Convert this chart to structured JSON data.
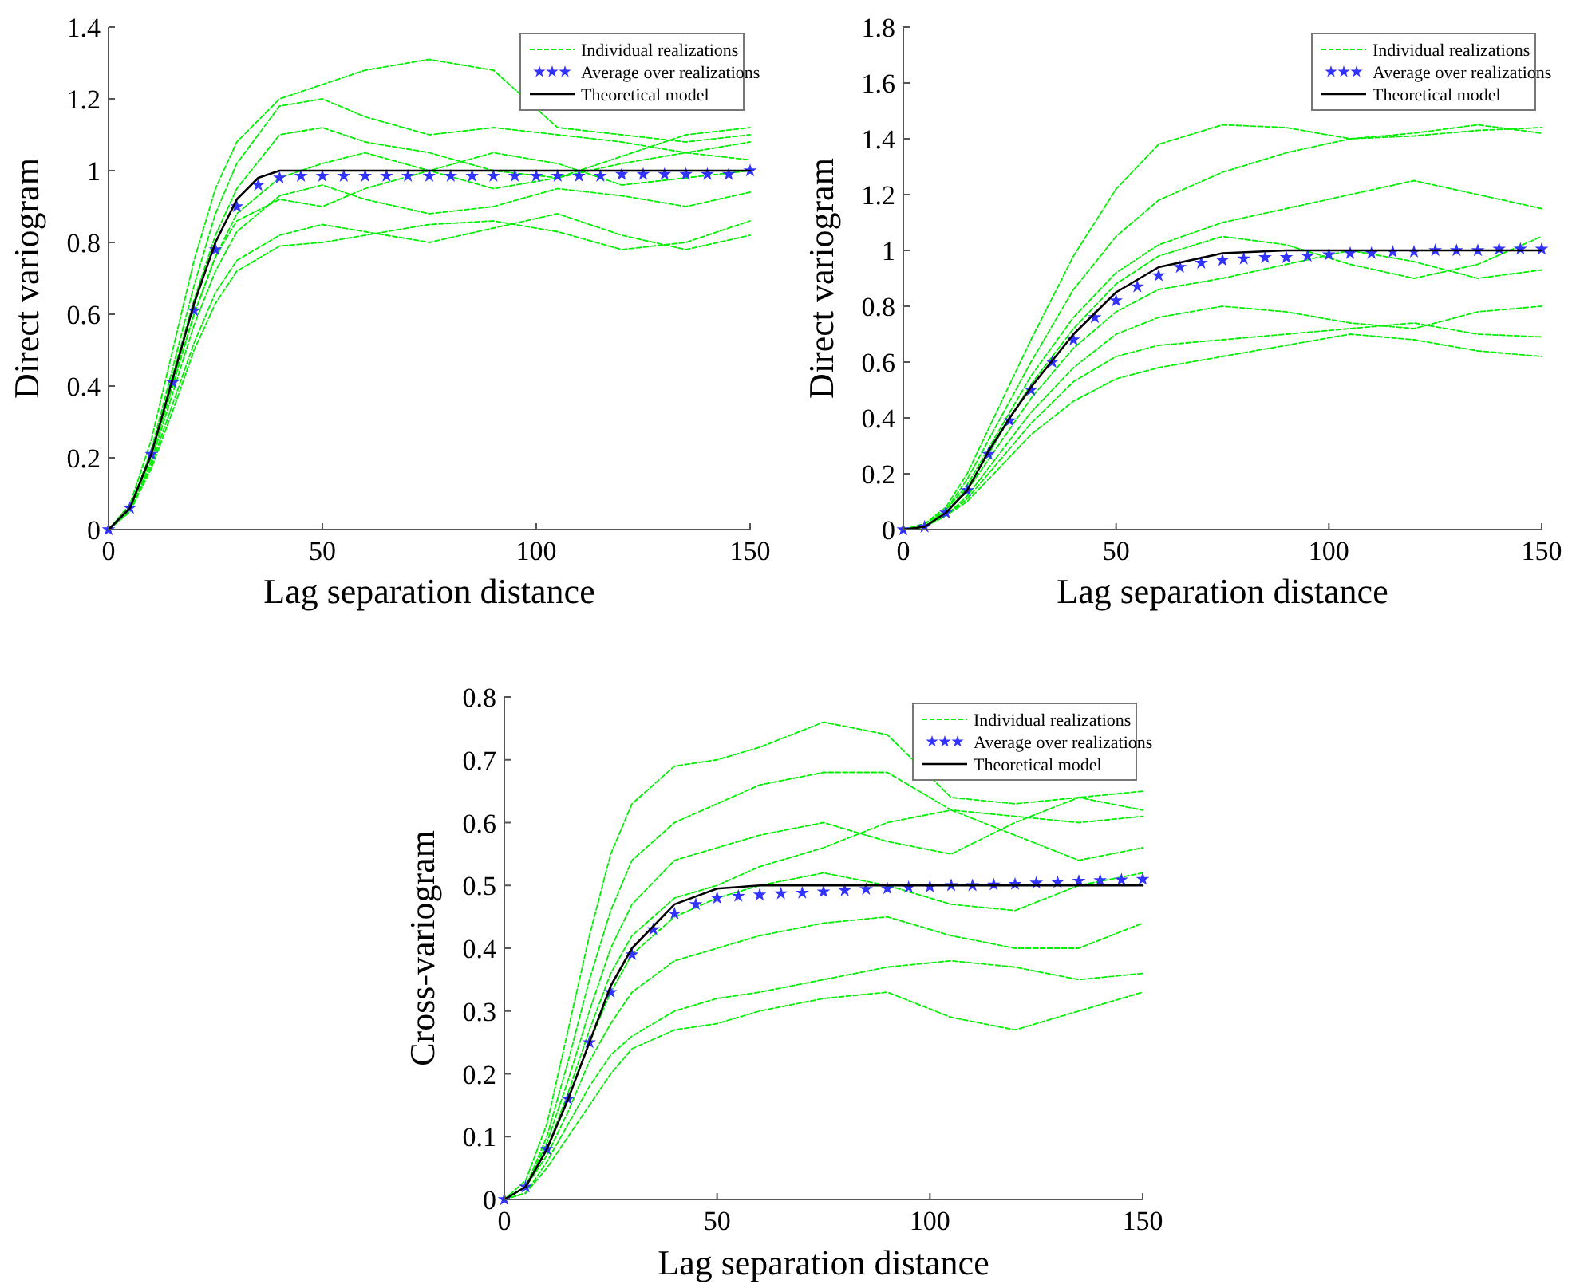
{
  "chart_data": [
    {
      "type": "line",
      "xlabel": "Lag separation distance",
      "ylabel": "Direct variogram",
      "xlim": [
        0,
        150
      ],
      "xticks": [
        0,
        50,
        100,
        150
      ],
      "ylim": [
        0,
        1.4
      ],
      "yticks": [
        0,
        0.2,
        0.4,
        0.6,
        0.8,
        1,
        1.2,
        1.4
      ],
      "grid": false,
      "legend": "top right",
      "series": [
        {
          "type": "line",
          "name": "Individual realizations",
          "color": "#00ee00",
          "line_style": "dashed",
          "marker": "none",
          "x": [
            0,
            5,
            10,
            15,
            20,
            25,
            30,
            40,
            50,
            60,
            75,
            90,
            105,
            120,
            135,
            150
          ],
          "values": [
            0,
            0.07,
            0.25,
            0.5,
            0.75,
            0.95,
            1.08,
            1.2,
            1.24,
            1.28,
            1.31,
            1.28,
            1.12,
            1.1,
            1.08,
            1.1
          ]
        },
        {
          "type": "line",
          "color": "#00ee00",
          "line_style": "dashed",
          "marker": "none",
          "x": [
            0,
            5,
            10,
            15,
            20,
            25,
            30,
            40,
            50,
            60,
            75,
            90,
            105,
            120,
            135,
            150
          ],
          "values": [
            0,
            0.06,
            0.22,
            0.45,
            0.68,
            0.88,
            1.02,
            1.18,
            1.2,
            1.15,
            1.1,
            1.12,
            1.1,
            1.08,
            1.05,
            1.08
          ]
        },
        {
          "type": "line",
          "color": "#00ee00",
          "line_style": "dashed",
          "marker": "none",
          "x": [
            0,
            5,
            10,
            15,
            20,
            25,
            30,
            40,
            50,
            60,
            75,
            90,
            105,
            120,
            135,
            150
          ],
          "values": [
            0,
            0.06,
            0.2,
            0.4,
            0.6,
            0.76,
            0.88,
            0.98,
            1.02,
            1.05,
            1.0,
            0.95,
            0.98,
            1.02,
            1.05,
            1.03
          ]
        },
        {
          "type": "line",
          "color": "#00ee00",
          "line_style": "dashed",
          "marker": "none",
          "x": [
            0,
            5,
            10,
            15,
            20,
            25,
            30,
            40,
            50,
            60,
            75,
            90,
            105,
            120,
            135,
            150
          ],
          "values": [
            0,
            0.05,
            0.19,
            0.38,
            0.57,
            0.72,
            0.83,
            0.93,
            0.96,
            0.92,
            0.88,
            0.9,
            0.95,
            0.93,
            0.9,
            0.94
          ]
        },
        {
          "type": "line",
          "color": "#00ee00",
          "line_style": "dashed",
          "marker": "none",
          "x": [
            0,
            5,
            10,
            15,
            20,
            25,
            30,
            40,
            50,
            60,
            75,
            90,
            105,
            120,
            135,
            150
          ],
          "values": [
            0,
            0.05,
            0.18,
            0.35,
            0.52,
            0.66,
            0.75,
            0.82,
            0.85,
            0.83,
            0.8,
            0.84,
            0.88,
            0.82,
            0.78,
            0.82
          ]
        },
        {
          "type": "line",
          "color": "#00ee00",
          "line_style": "dashed",
          "marker": "none",
          "x": [
            0,
            5,
            10,
            15,
            20,
            25,
            30,
            40,
            50,
            60,
            75,
            90,
            105,
            120,
            135,
            150
          ],
          "values": [
            0,
            0.05,
            0.17,
            0.33,
            0.5,
            0.63,
            0.72,
            0.79,
            0.8,
            0.82,
            0.85,
            0.86,
            0.83,
            0.78,
            0.8,
            0.86
          ]
        },
        {
          "type": "line",
          "color": "#00ee00",
          "line_style": "dashed",
          "marker": "none",
          "x": [
            0,
            5,
            10,
            15,
            20,
            25,
            30,
            40,
            50,
            60,
            75,
            90,
            105,
            120,
            135,
            150
          ],
          "values": [
            0,
            0.06,
            0.21,
            0.43,
            0.64,
            0.82,
            0.95,
            1.1,
            1.12,
            1.08,
            1.05,
            1.0,
            0.98,
            1.04,
            1.1,
            1.12
          ]
        },
        {
          "type": "line",
          "color": "#00ee00",
          "line_style": "dashed",
          "marker": "none",
          "x": [
            0,
            5,
            10,
            15,
            20,
            25,
            30,
            40,
            50,
            60,
            75,
            90,
            105,
            120,
            135,
            150
          ],
          "values": [
            0,
            0.06,
            0.21,
            0.41,
            0.6,
            0.76,
            0.86,
            0.92,
            0.9,
            0.95,
            1.0,
            1.05,
            1.02,
            0.96,
            0.98,
            1.0
          ]
        },
        {
          "type": "scatter",
          "name": "Average over realizations",
          "color": "#3333ff",
          "marker": "star",
          "x": [
            0,
            5,
            10,
            15,
            20,
            25,
            30,
            35,
            40,
            45,
            50,
            55,
            60,
            65,
            70,
            75,
            80,
            85,
            90,
            95,
            100,
            105,
            110,
            115,
            120,
            125,
            130,
            135,
            140,
            145,
            150
          ],
          "values": [
            0,
            0.06,
            0.21,
            0.41,
            0.61,
            0.78,
            0.9,
            0.96,
            0.98,
            0.985,
            0.985,
            0.985,
            0.985,
            0.985,
            0.985,
            0.985,
            0.985,
            0.985,
            0.985,
            0.985,
            0.985,
            0.985,
            0.985,
            0.985,
            0.99,
            0.99,
            0.99,
            0.99,
            0.99,
            0.99,
            1.0
          ]
        },
        {
          "type": "line",
          "name": "Theoretical model",
          "color": "#000000",
          "line_style": "solid",
          "marker": "none",
          "x": [
            0,
            5,
            10,
            15,
            20,
            25,
            30,
            35,
            40,
            50,
            60,
            75,
            90,
            105,
            120,
            135,
            150
          ],
          "values": [
            0,
            0.06,
            0.21,
            0.42,
            0.63,
            0.8,
            0.92,
            0.98,
            1.0,
            1.0,
            1.0,
            1.0,
            1.0,
            1.0,
            1.0,
            1.0,
            1.0
          ]
        }
      ]
    },
    {
      "type": "line",
      "xlabel": "Lag separation distance",
      "ylabel": "Direct variogram",
      "xlim": [
        0,
        150
      ],
      "xticks": [
        0,
        50,
        100,
        150
      ],
      "ylim": [
        0,
        1.8
      ],
      "yticks": [
        0,
        0.2,
        0.4,
        0.6,
        0.8,
        1,
        1.2,
        1.4,
        1.6,
        1.8
      ],
      "grid": false,
      "legend": "top right",
      "series": [
        {
          "type": "line",
          "name": "Individual realizations",
          "color": "#00ee00",
          "line_style": "dashed",
          "marker": "none",
          "x": [
            0,
            5,
            10,
            15,
            20,
            25,
            30,
            40,
            50,
            60,
            75,
            90,
            105,
            120,
            135,
            150
          ],
          "values": [
            0,
            0.02,
            0.08,
            0.2,
            0.36,
            0.52,
            0.68,
            0.98,
            1.22,
            1.38,
            1.45,
            1.44,
            1.4,
            1.42,
            1.45,
            1.42
          ]
        },
        {
          "type": "line",
          "color": "#00ee00",
          "line_style": "dashed",
          "marker": "none",
          "x": [
            0,
            5,
            10,
            15,
            20,
            25,
            30,
            40,
            50,
            60,
            75,
            90,
            105,
            120,
            135,
            150
          ],
          "values": [
            0,
            0.02,
            0.07,
            0.18,
            0.32,
            0.46,
            0.6,
            0.86,
            1.05,
            1.18,
            1.28,
            1.35,
            1.4,
            1.41,
            1.43,
            1.44
          ]
        },
        {
          "type": "line",
          "color": "#00ee00",
          "line_style": "dashed",
          "marker": "none",
          "x": [
            0,
            5,
            10,
            15,
            20,
            25,
            30,
            40,
            50,
            60,
            75,
            90,
            105,
            120,
            135,
            150
          ],
          "values": [
            0,
            0.01,
            0.07,
            0.16,
            0.29,
            0.42,
            0.55,
            0.76,
            0.92,
            1.02,
            1.1,
            1.15,
            1.2,
            1.25,
            1.2,
            1.15
          ]
        },
        {
          "type": "line",
          "color": "#00ee00",
          "line_style": "dashed",
          "marker": "none",
          "x": [
            0,
            5,
            10,
            15,
            20,
            25,
            30,
            40,
            50,
            60,
            75,
            90,
            105,
            120,
            135,
            150
          ],
          "values": [
            0,
            0.01,
            0.06,
            0.14,
            0.25,
            0.36,
            0.47,
            0.65,
            0.78,
            0.86,
            0.9,
            0.95,
            1.0,
            0.96,
            0.9,
            0.93
          ]
        },
        {
          "type": "line",
          "color": "#00ee00",
          "line_style": "dashed",
          "marker": "none",
          "x": [
            0,
            5,
            10,
            15,
            20,
            25,
            30,
            40,
            50,
            60,
            75,
            90,
            105,
            120,
            135,
            150
          ],
          "values": [
            0,
            0.01,
            0.05,
            0.12,
            0.22,
            0.32,
            0.42,
            0.58,
            0.7,
            0.76,
            0.8,
            0.78,
            0.74,
            0.72,
            0.78,
            0.8
          ]
        },
        {
          "type": "line",
          "color": "#00ee00",
          "line_style": "dashed",
          "marker": "none",
          "x": [
            0,
            5,
            10,
            15,
            20,
            25,
            30,
            40,
            50,
            60,
            75,
            90,
            105,
            120,
            135,
            150
          ],
          "values": [
            0,
            0.01,
            0.05,
            0.1,
            0.18,
            0.26,
            0.34,
            0.46,
            0.54,
            0.58,
            0.62,
            0.66,
            0.7,
            0.68,
            0.64,
            0.62
          ]
        },
        {
          "type": "line",
          "color": "#00ee00",
          "line_style": "dashed",
          "marker": "none",
          "x": [
            0,
            5,
            10,
            15,
            20,
            25,
            30,
            40,
            50,
            60,
            75,
            90,
            105,
            120,
            135,
            150
          ],
          "values": [
            0,
            0.01,
            0.06,
            0.15,
            0.27,
            0.4,
            0.52,
            0.72,
            0.88,
            0.98,
            1.05,
            1.02,
            0.95,
            0.9,
            0.95,
            1.05
          ]
        },
        {
          "type": "line",
          "color": "#00ee00",
          "line_style": "dashed",
          "marker": "none",
          "x": [
            0,
            5,
            10,
            15,
            20,
            25,
            30,
            40,
            50,
            60,
            75,
            90,
            105,
            120,
            135,
            150
          ],
          "values": [
            0,
            0.01,
            0.05,
            0.11,
            0.2,
            0.29,
            0.38,
            0.53,
            0.62,
            0.66,
            0.68,
            0.7,
            0.72,
            0.74,
            0.7,
            0.69
          ]
        },
        {
          "type": "scatter",
          "name": "Average over realizations",
          "color": "#3333ff",
          "marker": "star",
          "x": [
            0,
            5,
            10,
            15,
            20,
            25,
            30,
            35,
            40,
            45,
            50,
            55,
            60,
            65,
            70,
            75,
            80,
            85,
            90,
            95,
            100,
            105,
            110,
            115,
            120,
            125,
            130,
            135,
            140,
            145,
            150
          ],
          "values": [
            0,
            0.01,
            0.06,
            0.14,
            0.27,
            0.39,
            0.5,
            0.6,
            0.68,
            0.76,
            0.82,
            0.87,
            0.91,
            0.94,
            0.955,
            0.965,
            0.97,
            0.975,
            0.975,
            0.98,
            0.985,
            0.99,
            0.99,
            0.995,
            0.995,
            1.0,
            1.0,
            1.0,
            1.005,
            1.005,
            1.005
          ]
        },
        {
          "type": "line",
          "name": "Theoretical model",
          "color": "#000000",
          "line_style": "solid",
          "marker": "none",
          "x": [
            0,
            5,
            10,
            15,
            20,
            25,
            30,
            40,
            50,
            60,
            75,
            90,
            105,
            120,
            135,
            150
          ],
          "values": [
            0,
            0.01,
            0.06,
            0.14,
            0.28,
            0.4,
            0.51,
            0.7,
            0.85,
            0.94,
            0.99,
            1.0,
            1.0,
            1.0,
            1.0,
            1.0
          ]
        }
      ]
    },
    {
      "type": "line",
      "xlabel": "Lag separation distance",
      "ylabel": "Cross-variogram",
      "xlim": [
        0,
        150
      ],
      "xticks": [
        0,
        50,
        100,
        150
      ],
      "ylim": [
        0,
        0.8
      ],
      "yticks": [
        0,
        0.1,
        0.2,
        0.3,
        0.4,
        0.5,
        0.6,
        0.7,
        0.8
      ],
      "grid": false,
      "legend": "top right",
      "series": [
        {
          "type": "line",
          "name": "Individual realizations",
          "color": "#00ee00",
          "line_style": "dashed",
          "marker": "none",
          "x": [
            0,
            5,
            10,
            15,
            20,
            25,
            30,
            40,
            50,
            60,
            75,
            90,
            105,
            120,
            135,
            150
          ],
          "values": [
            0,
            0.03,
            0.12,
            0.27,
            0.42,
            0.55,
            0.63,
            0.69,
            0.7,
            0.72,
            0.76,
            0.74,
            0.64,
            0.63,
            0.64,
            0.65
          ]
        },
        {
          "type": "line",
          "color": "#00ee00",
          "line_style": "dashed",
          "marker": "none",
          "x": [
            0,
            5,
            10,
            15,
            20,
            25,
            30,
            40,
            50,
            60,
            75,
            90,
            105,
            120,
            135,
            150
          ],
          "values": [
            0,
            0.02,
            0.1,
            0.22,
            0.35,
            0.46,
            0.54,
            0.6,
            0.63,
            0.66,
            0.68,
            0.68,
            0.62,
            0.61,
            0.6,
            0.61
          ]
        },
        {
          "type": "line",
          "color": "#00ee00",
          "line_style": "dashed",
          "marker": "none",
          "x": [
            0,
            5,
            10,
            15,
            20,
            25,
            30,
            40,
            50,
            60,
            75,
            90,
            105,
            120,
            135,
            150
          ],
          "values": [
            0,
            0.02,
            0.09,
            0.19,
            0.3,
            0.4,
            0.47,
            0.54,
            0.56,
            0.58,
            0.6,
            0.57,
            0.55,
            0.6,
            0.64,
            0.62
          ]
        },
        {
          "type": "line",
          "color": "#00ee00",
          "line_style": "dashed",
          "marker": "none",
          "x": [
            0,
            5,
            10,
            15,
            20,
            25,
            30,
            40,
            50,
            60,
            75,
            90,
            105,
            120,
            135,
            150
          ],
          "values": [
            0,
            0.02,
            0.08,
            0.16,
            0.25,
            0.33,
            0.39,
            0.45,
            0.48,
            0.5,
            0.52,
            0.5,
            0.47,
            0.46,
            0.5,
            0.52
          ]
        },
        {
          "type": "line",
          "color": "#00ee00",
          "line_style": "dashed",
          "marker": "none",
          "x": [
            0,
            5,
            10,
            15,
            20,
            25,
            30,
            40,
            50,
            60,
            75,
            90,
            105,
            120,
            135,
            150
          ],
          "values": [
            0,
            0.02,
            0.07,
            0.14,
            0.22,
            0.28,
            0.33,
            0.38,
            0.4,
            0.42,
            0.44,
            0.45,
            0.42,
            0.4,
            0.4,
            0.44
          ]
        },
        {
          "type": "line",
          "color": "#00ee00",
          "line_style": "dashed",
          "marker": "none",
          "x": [
            0,
            5,
            10,
            15,
            20,
            25,
            30,
            40,
            50,
            60,
            75,
            90,
            105,
            120,
            135,
            150
          ],
          "values": [
            0,
            0.01,
            0.06,
            0.12,
            0.18,
            0.23,
            0.26,
            0.3,
            0.32,
            0.33,
            0.35,
            0.37,
            0.38,
            0.37,
            0.35,
            0.36
          ]
        },
        {
          "type": "line",
          "color": "#00ee00",
          "line_style": "dashed",
          "marker": "none",
          "x": [
            0,
            5,
            10,
            15,
            20,
            25,
            30,
            40,
            50,
            60,
            75,
            90,
            105,
            120,
            135,
            150
          ],
          "values": [
            0,
            0.01,
            0.05,
            0.1,
            0.15,
            0.2,
            0.24,
            0.27,
            0.28,
            0.3,
            0.32,
            0.33,
            0.29,
            0.27,
            0.3,
            0.33
          ]
        },
        {
          "type": "line",
          "color": "#00ee00",
          "line_style": "dashed",
          "marker": "none",
          "x": [
            0,
            5,
            10,
            15,
            20,
            25,
            30,
            40,
            50,
            60,
            75,
            90,
            105,
            120,
            135,
            150
          ],
          "values": [
            0,
            0.02,
            0.08,
            0.17,
            0.27,
            0.36,
            0.42,
            0.48,
            0.5,
            0.53,
            0.56,
            0.6,
            0.62,
            0.58,
            0.54,
            0.56
          ]
        },
        {
          "type": "scatter",
          "name": "Average over realizations",
          "color": "#3333ff",
          "marker": "star",
          "x": [
            0,
            5,
            10,
            15,
            20,
            25,
            30,
            35,
            40,
            45,
            50,
            55,
            60,
            65,
            70,
            75,
            80,
            85,
            90,
            95,
            100,
            105,
            110,
            115,
            120,
            125,
            130,
            135,
            140,
            145,
            150
          ],
          "values": [
            0,
            0.02,
            0.08,
            0.16,
            0.25,
            0.33,
            0.39,
            0.43,
            0.455,
            0.47,
            0.48,
            0.483,
            0.485,
            0.487,
            0.488,
            0.49,
            0.492,
            0.494,
            0.495,
            0.497,
            0.498,
            0.5,
            0.5,
            0.501,
            0.502,
            0.504,
            0.505,
            0.507,
            0.508,
            0.509,
            0.51
          ]
        },
        {
          "type": "line",
          "name": "Theoretical model",
          "color": "#000000",
          "line_style": "solid",
          "marker": "none",
          "x": [
            0,
            5,
            10,
            15,
            20,
            25,
            30,
            40,
            50,
            60,
            75,
            90,
            105,
            120,
            135,
            150
          ],
          "values": [
            0,
            0.02,
            0.08,
            0.16,
            0.25,
            0.34,
            0.4,
            0.47,
            0.495,
            0.5,
            0.5,
            0.5,
            0.5,
            0.5,
            0.5,
            0.5
          ]
        }
      ]
    }
  ]
}
